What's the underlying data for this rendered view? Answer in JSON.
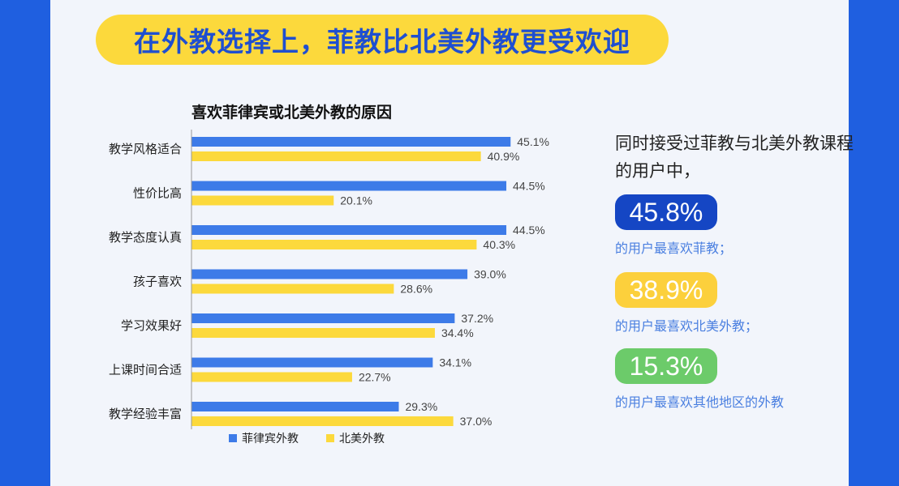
{
  "headline": "在外教选择上，菲教比北美外教更受欢迎",
  "chart_data": {
    "type": "bar",
    "orientation": "horizontal",
    "title": "喜欢菲律宾或北美外教的原因",
    "categories": [
      "教学风格适合",
      "性价比高",
      "教学态度认真",
      "孩子喜欢",
      "学习效果好",
      "上课时间合适",
      "教学经验丰富"
    ],
    "series": [
      {
        "name": "菲律宾外教",
        "color": "#3d7be8",
        "values": [
          45.1,
          44.5,
          44.5,
          39.0,
          37.2,
          34.1,
          29.3
        ],
        "labels": [
          "45.1%",
          "44.5%",
          "44.5%",
          "39.0%",
          "37.2%",
          "34.1%",
          "29.3%"
        ]
      },
      {
        "name": "北美外教",
        "color": "#fcd93c",
        "values": [
          40.9,
          20.1,
          40.3,
          28.6,
          34.4,
          22.7,
          37.0
        ],
        "labels": [
          "40.9%",
          "20.1%",
          "40.3%",
          "28.6%",
          "34.4%",
          "22.7%",
          "37.0%"
        ]
      }
    ],
    "xlim": [
      0,
      50
    ],
    "grid": false,
    "legend": "bottom"
  },
  "side": {
    "intro": "同时接受过菲教与北美外教课程的用户中，",
    "stats": [
      {
        "value": "45.8%",
        "caption": "的用户最喜欢菲教；",
        "color": "#1546c4"
      },
      {
        "value": "38.9%",
        "caption": "的用户最喜欢北美外教；",
        "color": "#fcd03c"
      },
      {
        "value": "15.3%",
        "caption": "的用户最喜欢其他地区的外教",
        "color": "#6ccb6a"
      }
    ]
  }
}
